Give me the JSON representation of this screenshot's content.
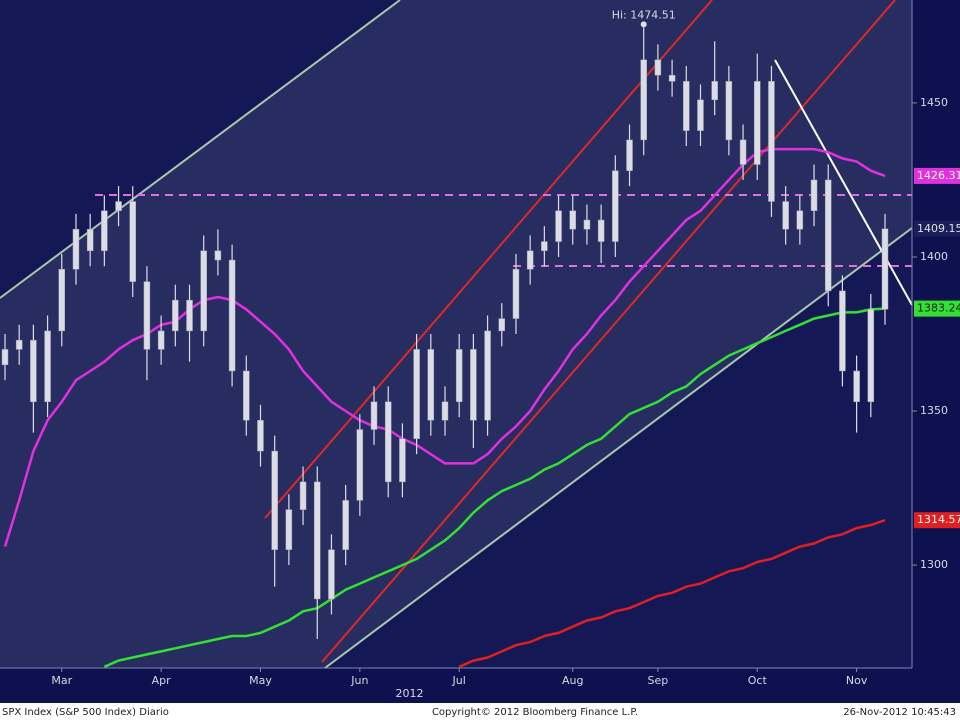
{
  "chart_data": {
    "type": "candlestick",
    "categories": [
      null,
      null,
      null,
      null,
      "Mar",
      null,
      null,
      null,
      null,
      null,
      null,
      "Apr",
      null,
      null,
      null,
      null,
      null,
      null,
      "May",
      null,
      null,
      null,
      null,
      null,
      null,
      "Jun",
      null,
      null,
      null,
      null,
      null,
      null,
      "Jul",
      null,
      null,
      null,
      null,
      null,
      null,
      null,
      "Aug",
      null,
      null,
      null,
      null,
      null,
      "Sep",
      null,
      null,
      null,
      null,
      null,
      null,
      "Oct",
      null,
      null,
      null,
      null,
      null,
      null,
      "Nov",
      null,
      null
    ],
    "x_sublabel": "2012",
    "open": [
      1365,
      1370,
      1373,
      1353,
      1376,
      1396,
      1409,
      1402,
      1415,
      1418,
      1392,
      1370,
      1376,
      1386,
      1376,
      1402,
      1399,
      1363,
      1347,
      1337,
      1305,
      1318,
      1327,
      1289,
      1305,
      1321,
      1344,
      1353,
      1327,
      1341,
      1370,
      1347,
      1353,
      1370,
      1347,
      1376,
      1380,
      1396,
      1402,
      1405,
      1415,
      1409,
      1412,
      1405,
      1428,
      1438,
      1464,
      1459,
      1457,
      1441,
      1451,
      1457,
      1438,
      1430,
      1457,
      1418,
      1409,
      1415,
      1425,
      1389,
      1363,
      1353,
      1383
    ],
    "high": [
      1375,
      1378,
      1378,
      1381,
      1401,
      1414,
      1414,
      1420,
      1423,
      1423,
      1397,
      1381,
      1391,
      1391,
      1407,
      1409,
      1404,
      1368,
      1352,
      1342,
      1323,
      1332,
      1332,
      1310,
      1326,
      1349,
      1358,
      1358,
      1346,
      1375,
      1375,
      1358,
      1375,
      1375,
      1381,
      1385,
      1401,
      1407,
      1410,
      1420,
      1420,
      1417,
      1417,
      1433,
      1443,
      1474.51,
      1469,
      1464,
      1462,
      1456,
      1470,
      1462,
      1443,
      1466,
      1462,
      1423,
      1420,
      1430,
      1430,
      1394,
      1368,
      1388,
      1414
    ],
    "low": [
      1360,
      1365,
      1343,
      1348,
      1371,
      1391,
      1397,
      1397,
      1410,
      1387,
      1360,
      1365,
      1371,
      1366,
      1371,
      1394,
      1358,
      1342,
      1332,
      1293,
      1300,
      1313,
      1276,
      1284,
      1300,
      1316,
      1339,
      1322,
      1322,
      1336,
      1342,
      1342,
      1348,
      1338,
      1342,
      1371,
      1375,
      1391,
      1397,
      1400,
      1404,
      1404,
      1398,
      1400,
      1423,
      1433,
      1454,
      1452,
      1436,
      1436,
      1446,
      1433,
      1425,
      1425,
      1413,
      1404,
      1404,
      1410,
      1384,
      1358,
      1343,
      1348,
      1378
    ],
    "close": [
      1370,
      1373,
      1353,
      1376,
      1396,
      1409,
      1402,
      1415,
      1418,
      1392,
      1370,
      1376,
      1386,
      1376,
      1402,
      1399,
      1363,
      1347,
      1337,
      1305,
      1318,
      1327,
      1289,
      1305,
      1321,
      1344,
      1353,
      1327,
      1341,
      1370,
      1347,
      1353,
      1370,
      1347,
      1376,
      1380,
      1396,
      1402,
      1405,
      1415,
      1409,
      1412,
      1405,
      1428,
      1438,
      1464,
      1459,
      1457,
      1441,
      1451,
      1457,
      1438,
      1430,
      1457,
      1418,
      1409,
      1415,
      1425,
      1389,
      1363,
      1353,
      1383,
      1409.15
    ],
    "candle_color": "#dcdce4",
    "series": [
      {
        "color": "#e030e0",
        "values": [
          1306,
          1321,
          1337,
          1347,
          1353,
          1360,
          1363,
          1366,
          1370,
          1373,
          1375,
          1378,
          1379,
          1383,
          1386,
          1387,
          1386,
          1383,
          1379,
          1375,
          1370,
          1363,
          1358,
          1353,
          1350,
          1347,
          1345,
          1344,
          1341,
          1339,
          1336,
          1333,
          1333,
          1333,
          1336,
          1341,
          1345,
          1350,
          1357,
          1363,
          1370,
          1375,
          1381,
          1386,
          1392,
          1397,
          1402,
          1407,
          1412,
          1415,
          1420,
          1425,
          1430,
          1434,
          1435,
          1435,
          1435,
          1435,
          1434,
          1432,
          1431,
          1428,
          1426.31
        ]
      },
      {
        "color": "#33e033",
        "values": [
          null,
          null,
          null,
          null,
          null,
          null,
          null,
          1267,
          1269,
          1270,
          1271,
          1272,
          1273,
          1274,
          1275,
          1276,
          1277,
          1277,
          1278,
          1280,
          1282,
          1285,
          1286,
          1289,
          1292,
          1294,
          1296,
          1298,
          1300,
          1302,
          1305,
          1308,
          1312,
          1317,
          1321,
          1324,
          1326,
          1328,
          1331,
          1333,
          1336,
          1339,
          1341,
          1345,
          1349,
          1351,
          1353,
          1356,
          1358,
          1362,
          1365,
          1368,
          1370,
          1372,
          1374,
          1376,
          1378,
          1380,
          1381,
          1382,
          1382,
          1383,
          1383.24
        ]
      },
      {
        "color": "#e02020",
        "values": [
          null,
          null,
          null,
          null,
          null,
          null,
          null,
          null,
          null,
          null,
          null,
          null,
          null,
          null,
          null,
          null,
          null,
          null,
          null,
          null,
          null,
          null,
          null,
          null,
          null,
          null,
          null,
          null,
          null,
          null,
          null,
          null,
          1267,
          1269,
          1270,
          1272,
          1274,
          1275,
          1277,
          1278,
          1280,
          1282,
          1283,
          1285,
          1286,
          1288,
          1290,
          1291,
          1293,
          1294,
          1296,
          1298,
          1299,
          1301,
          1302,
          1304,
          1306,
          1307,
          1309,
          1310,
          1312,
          1313,
          1314.57
        ]
      }
    ],
    "price_tags": [
      {
        "value": 1426.31,
        "color": "#e030e0",
        "text_color": "#ffffff"
      },
      {
        "value": 1409.15,
        "color": "#1a1f5a",
        "text_color": "#e0e0e0"
      },
      {
        "value": 1383.24,
        "color": "#33e033",
        "text_color": "#102010"
      },
      {
        "value": 1314.57,
        "color": "#e02020",
        "text_color": "#ffffff"
      }
    ],
    "hi": {
      "value": 1474.51,
      "label": "Hi: 1474.51"
    },
    "ylim": [
      1266.6,
      1483.4
    ],
    "yticks": [
      1300,
      1350,
      1400,
      1450
    ],
    "footer": {
      "left": "SPX Index (S&P 500 Index) Diario",
      "center": "Copyright© 2012 Bloomberg Finance L.P.",
      "right": "26-Nov-2012 10:45:43"
    }
  }
}
